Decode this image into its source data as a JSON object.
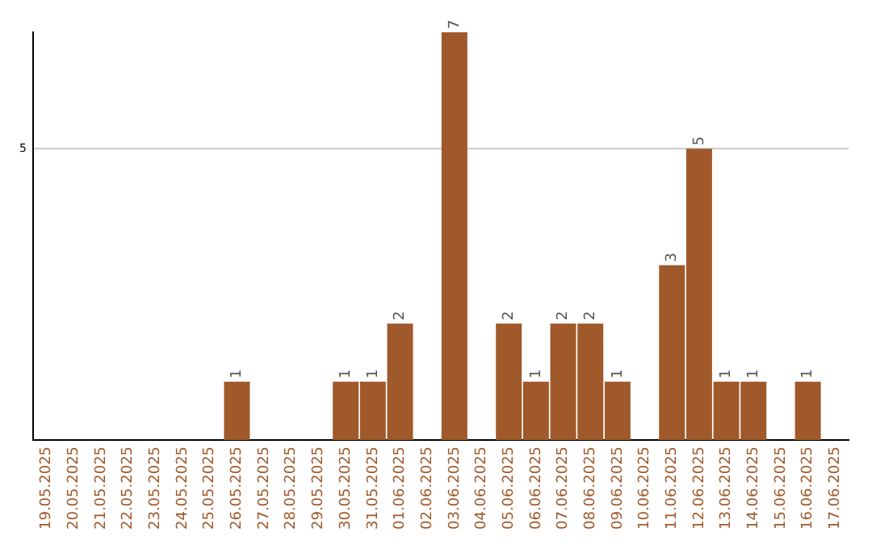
{
  "chart_data": {
    "type": "bar",
    "categories": [
      "19.05.2025",
      "20.05.2025",
      "21.05.2025",
      "22.05.2025",
      "23.05.2025",
      "24.05.2025",
      "25.05.2025",
      "26.05.2025",
      "27.05.2025",
      "28.05.2025",
      "29.05.2025",
      "30.05.2025",
      "31.05.2025",
      "01.06.2025",
      "02.06.2025",
      "03.06.2025",
      "04.06.2025",
      "05.06.2025",
      "06.06.2025",
      "07.06.2025",
      "08.06.2025",
      "09.06.2025",
      "10.06.2025",
      "11.06.2025",
      "12.06.2025",
      "13.06.2025",
      "14.06.2025",
      "15.06.2025",
      "16.06.2025",
      "17.06.2025"
    ],
    "values": [
      0,
      0,
      0,
      0,
      0,
      0,
      0,
      1,
      0,
      0,
      0,
      1,
      1,
      2,
      0,
      7,
      0,
      2,
      1,
      2,
      2,
      1,
      0,
      3,
      5,
      1,
      1,
      0,
      1,
      0
    ],
    "value_labels": [
      null,
      null,
      null,
      null,
      null,
      null,
      null,
      "1",
      null,
      null,
      null,
      "1",
      "1",
      "2",
      null,
      "7",
      null,
      "2",
      "1",
      "2",
      "2",
      "1",
      null,
      "3",
      "5",
      "1",
      "1",
      null,
      "1",
      null
    ],
    "color": "#a0592a",
    "ylim": [
      0,
      7
    ],
    "yticks": [
      5
    ],
    "grid": "y",
    "legend": false
  }
}
